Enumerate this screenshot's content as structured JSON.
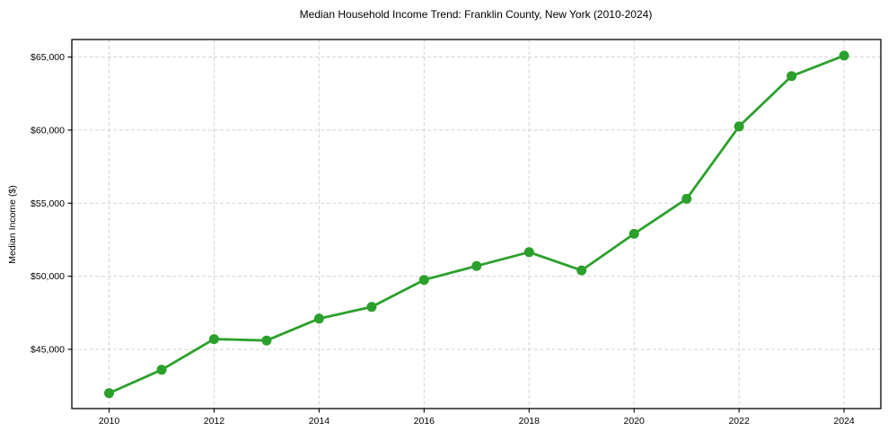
{
  "chart_data": {
    "type": "line",
    "title": "Median Household Income Trend: Franklin County, New York (2010-2024)",
    "xlabel": "",
    "ylabel": "Median Income ($)",
    "x": [
      2010,
      2011,
      2012,
      2013,
      2014,
      2015,
      2016,
      2017,
      2018,
      2019,
      2020,
      2021,
      2022,
      2023,
      2024
    ],
    "series": [
      {
        "name": "Median Household Income",
        "values": [
          42000,
          43600,
          45700,
          45600,
          47100,
          47900,
          49750,
          50700,
          51650,
          50400,
          52900,
          55300,
          60250,
          63700,
          65100
        ]
      }
    ],
    "x_ticks": [
      2010,
      2012,
      2014,
      2016,
      2018,
      2020,
      2022,
      2024
    ],
    "y_ticks": [
      45000,
      50000,
      55000,
      60000,
      65000
    ],
    "y_tick_labels": [
      "$45,000",
      "$50,000",
      "$55,000",
      "$60,000",
      "$65,000"
    ],
    "xlim": [
      2009.29,
      2024.7
    ],
    "ylim": [
      40945,
      66198
    ],
    "grid": true,
    "grid_style": "dashed",
    "legend": "none",
    "line_color": "#2ca02c",
    "marker": "circle",
    "grid_color": "#d3d3d3",
    "axis_color": "#000000",
    "text_color": "#000000",
    "background": "#ffffff"
  }
}
